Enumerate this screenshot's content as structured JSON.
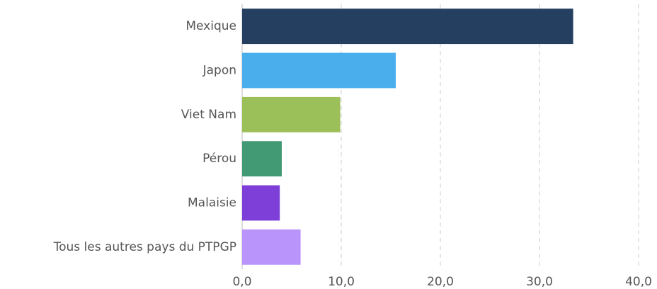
{
  "chart_data": {
    "type": "hbar",
    "categories": [
      "Mexique",
      "Japon",
      "Viet Nam",
      "Pérou",
      "Malaisie",
      "Tous les autres pays du PTPGP"
    ],
    "values": [
      33.4,
      15.5,
      9.9,
      4.0,
      3.8,
      5.9
    ],
    "colors": [
      "#243f60",
      "#4aaeec",
      "#9bbf59",
      "#429a74",
      "#7d3fd8",
      "#b995fb"
    ],
    "xlim": [
      0,
      40
    ],
    "xticks": [
      {
        "value": 0,
        "label": "0,0"
      },
      {
        "value": 10,
        "label": "10,0"
      },
      {
        "value": 20,
        "label": "20,0"
      },
      {
        "value": 30,
        "label": "30,0"
      },
      {
        "value": 40,
        "label": "40,0"
      }
    ],
    "grid": true
  }
}
